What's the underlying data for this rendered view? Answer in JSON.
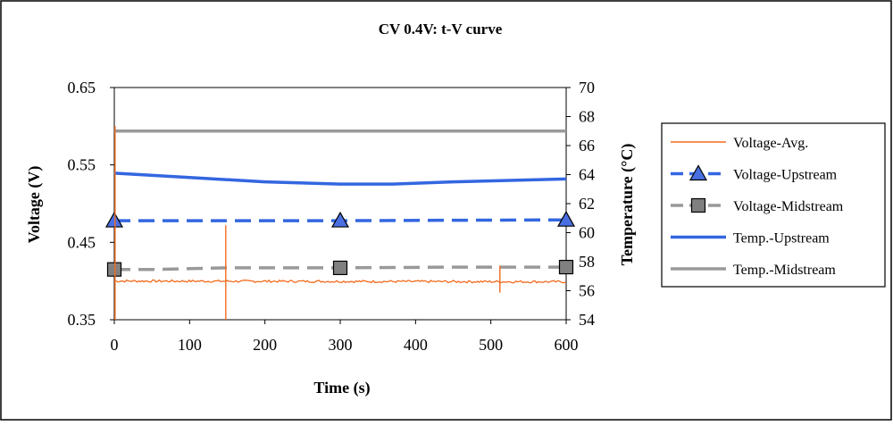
{
  "chart_data": {
    "type": "line",
    "title": "CV 0.4V: t-V curve",
    "xlabel": "Time (s)",
    "ylabel": "Voltage (V)",
    "y2label": "Temperature (°C)",
    "xlim": [
      0,
      600
    ],
    "ylim": [
      0.35,
      0.65
    ],
    "y2lim": [
      54,
      70
    ],
    "xticks": [
      "0",
      "100",
      "200",
      "300",
      "400",
      "500",
      "600"
    ],
    "yticks": [
      "0.35",
      "0.45",
      "0.55",
      "0.65"
    ],
    "y2ticks": [
      "54",
      "56",
      "58",
      "60",
      "62",
      "64",
      "66",
      "68",
      "70"
    ],
    "grid": false,
    "legend_position": "right",
    "series": [
      {
        "name": "Voltage-Avg.",
        "axis": "left",
        "color": "#f26b1d",
        "style": "noisy",
        "x": [
          0,
          600
        ],
        "values": [
          0.4,
          0.399
        ],
        "spikes": [
          {
            "x": 1,
            "min": 0.35,
            "max": 0.6
          },
          {
            "x": 148,
            "min": 0.35,
            "max": 0.472
          },
          {
            "x": 512,
            "min": 0.385,
            "max": 0.42
          }
        ]
      },
      {
        "name": "Voltage-Upstream",
        "axis": "left",
        "color": "#3366e0",
        "style": "dashed",
        "marker": "triangle",
        "marker_fill": "#4a6fe0",
        "x": [
          0,
          300,
          600
        ],
        "values": [
          0.478,
          0.478,
          0.479
        ]
      },
      {
        "name": "Voltage-Midstream",
        "axis": "left",
        "color": "#999999",
        "style": "dashed",
        "marker": "square",
        "marker_fill": "#808080",
        "x": [
          0,
          50,
          150,
          300,
          450,
          600
        ],
        "values": [
          0.415,
          0.415,
          0.417,
          0.417,
          0.418,
          0.418
        ]
      },
      {
        "name": "Temp.-Upstream",
        "axis": "right",
        "color": "#3366e0",
        "style": "solid",
        "x": [
          0,
          100,
          200,
          300,
          370,
          450,
          600
        ],
        "values": [
          64.1,
          63.8,
          63.5,
          63.35,
          63.35,
          63.5,
          63.7
        ]
      },
      {
        "name": "Temp.-Midstream",
        "axis": "right",
        "color": "#999999",
        "style": "solid",
        "x": [
          0,
          600
        ],
        "values": [
          67.0,
          67.0
        ]
      }
    ]
  }
}
